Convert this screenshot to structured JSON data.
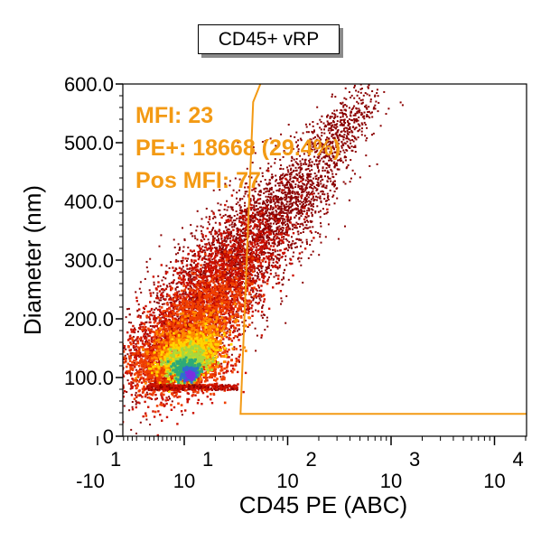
{
  "chart_data": {
    "type": "scatter",
    "title": "CD45+ vRP",
    "xlabel": "CD45 PE (ABC)",
    "ylabel": "Diameter (nm)",
    "x_scale": "biexponential",
    "xlim": [
      -20,
      20000
    ],
    "ylim": [
      0,
      600
    ],
    "y_ticks": [
      "0",
      "100.0",
      "200.0",
      "300.0",
      "400.0",
      "500.0",
      "600.0"
    ],
    "x_ticks": [
      {
        "base": "-10",
        "exp": "1"
      },
      {
        "base": "10",
        "exp": "1"
      },
      {
        "base": "10",
        "exp": "2"
      },
      {
        "base": "10",
        "exp": "3"
      },
      {
        "base": "10",
        "exp": "4"
      }
    ],
    "density_colors": [
      "#8b0000",
      "#cc1100",
      "#f04000",
      "#ff8a00",
      "#ffd400",
      "#a8d83c",
      "#2eaa78",
      "#2f6dd0",
      "#7a2fe0"
    ],
    "gate_color": "#f39a14",
    "gate_x_threshold": 35,
    "annotations": [
      "MFI: 23",
      "PE+: 18668 (29.4%)",
      "Pos MFI: 77"
    ],
    "stats": {
      "mfi": 23,
      "pe_pos_count": 18668,
      "pe_pos_percent": 29.4,
      "pos_mfi": 77
    },
    "grid": false,
    "legend": "none"
  }
}
